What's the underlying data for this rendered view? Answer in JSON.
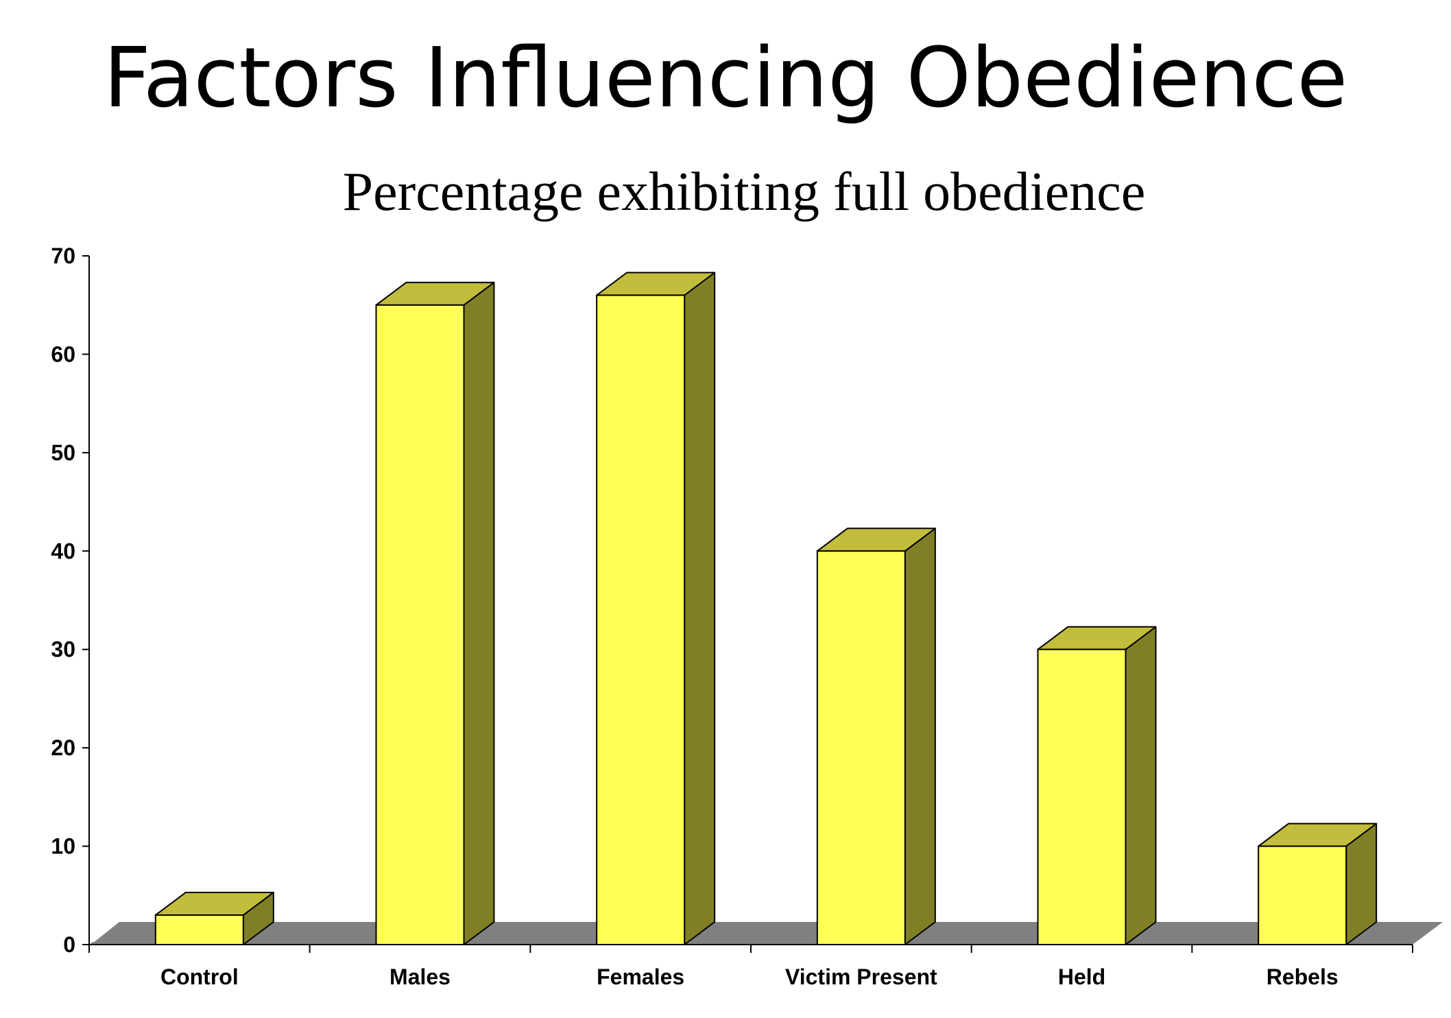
{
  "chart_data": {
    "type": "bar",
    "title": "Factors Influencing Obedience",
    "subtitle": "Percentage exhibiting full obedience",
    "categories": [
      "Control",
      "Males",
      "Females",
      "Victim Present",
      "Held",
      "Rebels"
    ],
    "values": [
      3,
      65,
      66,
      40,
      30,
      10
    ],
    "ylim": [
      0,
      70
    ],
    "yticks": [
      0,
      10,
      20,
      30,
      40,
      50,
      60,
      70
    ],
    "grid": false,
    "legend": "none",
    "style": "3d",
    "colors": {
      "bar_front": "#ffff55",
      "bar_top": "#c2bd3c",
      "bar_side": "#807f26",
      "floor": "#808080"
    }
  }
}
